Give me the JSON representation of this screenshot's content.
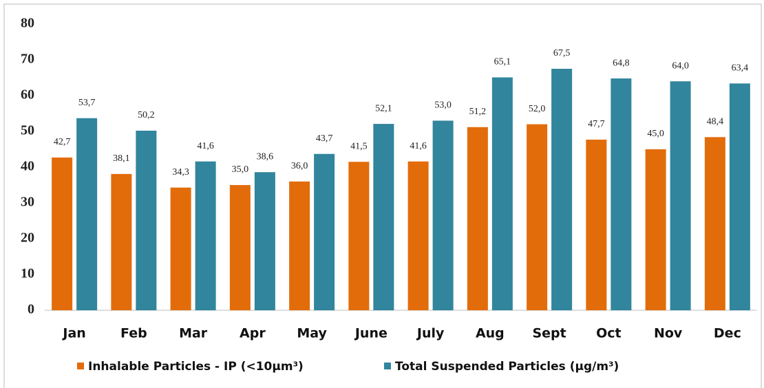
{
  "chart_data": {
    "type": "bar",
    "categories": [
      "Jan",
      "Feb",
      "Mar",
      "Apr",
      "May",
      "June",
      "July",
      "Aug",
      "Sept",
      "Oct",
      "Nov",
      "Dec"
    ],
    "series": [
      {
        "name": "Inhalable Particles - IP (<10µm³)",
        "color": "#e36c0a",
        "values": [
          42.7,
          38.1,
          34.3,
          35.0,
          36.0,
          41.5,
          41.6,
          51.2,
          52.0,
          47.7,
          45.0,
          48.4
        ],
        "value_labels": [
          "42,7",
          "38,1",
          "34,3",
          "35,0",
          "36,0",
          "41,5",
          "41,6",
          "51,2",
          "52,0",
          "47,7",
          "45,0",
          "48,4"
        ]
      },
      {
        "name": "Total Suspended Particles (µg/m³)",
        "color": "#31859c",
        "values": [
          53.7,
          50.2,
          41.6,
          38.6,
          43.7,
          52.1,
          53.0,
          65.1,
          67.5,
          64.8,
          64.0,
          63.4
        ],
        "value_labels": [
          "53,7",
          "50,2",
          "41,6",
          "38,6",
          "43,7",
          "52,1",
          "53,0",
          "65,1",
          "67,5",
          "64,8",
          "64,0",
          "63,4"
        ]
      }
    ],
    "ylim": [
      0,
      80
    ],
    "yticks": [
      0,
      10,
      20,
      30,
      40,
      50,
      60,
      70,
      80
    ],
    "grid": false,
    "legend": "bottom"
  }
}
